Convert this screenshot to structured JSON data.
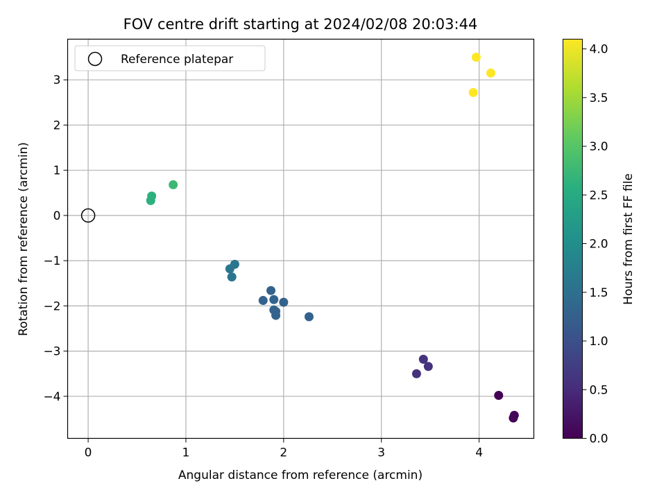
{
  "chart_data": {
    "type": "scatter",
    "title": "FOV centre drift starting at 2024/02/08 20:03:44",
    "xlabel": "Angular distance from reference (arcmin)",
    "ylabel": "Rotation from reference (arcmin)",
    "xlim": [
      -0.21,
      4.56
    ],
    "ylim": [
      -4.93,
      3.9
    ],
    "xticks": [
      0,
      1,
      2,
      3,
      4
    ],
    "xtick_labels": [
      "0",
      "1",
      "2",
      "3",
      "4"
    ],
    "yticks": [
      -4,
      -3,
      -2,
      -1,
      0,
      1,
      2,
      3
    ],
    "ytick_labels": [
      "−4",
      "−3",
      "−2",
      "−1",
      "0",
      "1",
      "2",
      "3"
    ],
    "grid": true,
    "colormap": "viridis",
    "colorbar": {
      "label": "Hours from first FF file",
      "range": [
        0.0,
        4.1
      ],
      "ticks": [
        0.0,
        0.5,
        1.0,
        1.5,
        2.0,
        2.5,
        3.0,
        3.5,
        4.0
      ],
      "tick_labels": [
        "0.0",
        "0.5",
        "1.0",
        "1.5",
        "2.0",
        "2.5",
        "3.0",
        "3.5",
        "4.0"
      ]
    },
    "legend": {
      "position": "top-left",
      "entries": [
        "Reference platepar"
      ]
    },
    "reference_point": {
      "name": "Reference platepar",
      "x": 0,
      "y": 0
    },
    "points": [
      {
        "x": 4.2,
        "y": -3.98,
        "hours": 0.0
      },
      {
        "x": 4.36,
        "y": -4.42,
        "hours": 0.02
      },
      {
        "x": 4.35,
        "y": -4.48,
        "hours": 0.04
      },
      {
        "x": 3.43,
        "y": -3.18,
        "hours": 0.6
      },
      {
        "x": 3.48,
        "y": -3.34,
        "hours": 0.6
      },
      {
        "x": 3.36,
        "y": -3.5,
        "hours": 0.6
      },
      {
        "x": 1.87,
        "y": -1.66,
        "hours": 1.3
      },
      {
        "x": 1.79,
        "y": -1.88,
        "hours": 1.3
      },
      {
        "x": 1.9,
        "y": -1.86,
        "hours": 1.3
      },
      {
        "x": 2.0,
        "y": -1.92,
        "hours": 1.3
      },
      {
        "x": 1.9,
        "y": -2.09,
        "hours": 1.3
      },
      {
        "x": 1.92,
        "y": -2.12,
        "hours": 1.3
      },
      {
        "x": 1.92,
        "y": -2.21,
        "hours": 1.3
      },
      {
        "x": 2.26,
        "y": -2.24,
        "hours": 1.3
      },
      {
        "x": 1.5,
        "y": -1.08,
        "hours": 1.6
      },
      {
        "x": 1.45,
        "y": -1.18,
        "hours": 1.6
      },
      {
        "x": 1.47,
        "y": -1.36,
        "hours": 1.6
      },
      {
        "x": 0.65,
        "y": 0.43,
        "hours": 2.6
      },
      {
        "x": 0.64,
        "y": 0.33,
        "hours": 2.6
      },
      {
        "x": 0.87,
        "y": 0.68,
        "hours": 2.75
      },
      {
        "x": 3.97,
        "y": 3.5,
        "hours": 4.1
      },
      {
        "x": 4.12,
        "y": 3.15,
        "hours": 4.1
      },
      {
        "x": 3.94,
        "y": 2.72,
        "hours": 4.1
      }
    ]
  }
}
